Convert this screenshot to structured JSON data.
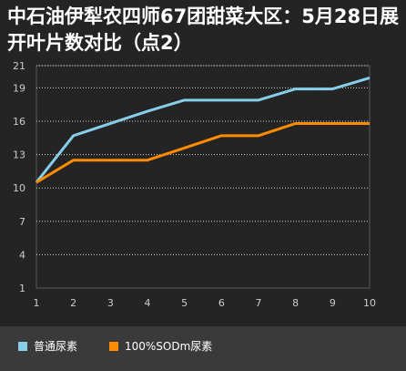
{
  "chart_data": {
    "type": "line",
    "title": "中石油伊犁农四师67团甜菜大区：5月28日展开叶片数对比（点2）",
    "x": [
      1,
      2,
      3,
      4,
      5,
      6,
      7,
      8,
      9,
      10
    ],
    "series": [
      {
        "name": "普通尿素",
        "color": "#87ceeb",
        "values": [
          10.5,
          14.7,
          15.8,
          16.9,
          17.9,
          17.9,
          17.9,
          18.9,
          18.9,
          19.9
        ]
      },
      {
        "name": "100%SODm尿素",
        "color": "#ff8c00",
        "values": [
          10.5,
          12.5,
          12.5,
          12.5,
          13.6,
          14.7,
          14.7,
          15.8,
          15.8,
          15.8
        ]
      }
    ],
    "xlim": [
      1,
      10
    ],
    "ylim": [
      1,
      21
    ],
    "xticks": [
      1,
      2,
      3,
      4,
      5,
      6,
      7,
      8,
      9,
      10
    ],
    "yticks": [
      1,
      4,
      7,
      10,
      13,
      16,
      19,
      21
    ],
    "grid": true,
    "legend_position": "bottom"
  }
}
